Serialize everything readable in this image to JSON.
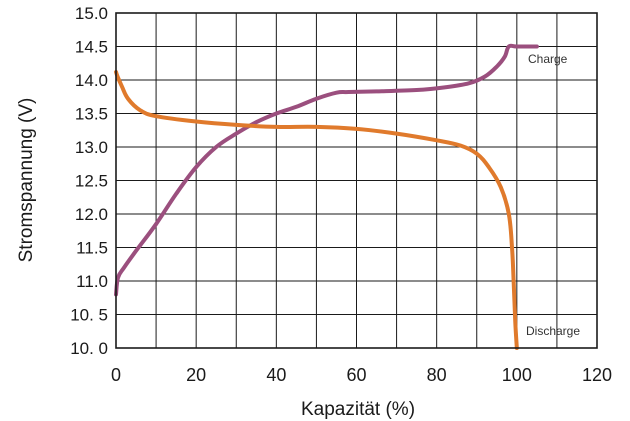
{
  "chart_data": {
    "type": "line",
    "title": "",
    "xlabel": "Kapazität (%)",
    "ylabel": "Stromspannung (V)",
    "xlim": [
      0,
      120
    ],
    "ylim": [
      10.0,
      15.0
    ],
    "grid": true,
    "x_ticks": [
      "0",
      "20",
      "40",
      "60",
      "80",
      "100",
      "120"
    ],
    "y_ticks": [
      "10. 0",
      "10. 5",
      "11.0",
      "11.5",
      "12.0",
      "12.5",
      "13.0",
      "13.5",
      "14.0",
      "14.5",
      "15.0"
    ],
    "series": [
      {
        "name": "Charge",
        "color": "#9b4f7e",
        "x": [
          0,
          0.5,
          2,
          5,
          10,
          15,
          20,
          25,
          30,
          35,
          40,
          45,
          50,
          55,
          58,
          65,
          75,
          82,
          88,
          92,
          95,
          97,
          98,
          100,
          105
        ],
        "y": [
          10.8,
          11.05,
          11.2,
          11.45,
          11.85,
          12.3,
          12.7,
          13.0,
          13.2,
          13.37,
          13.5,
          13.6,
          13.72,
          13.81,
          13.82,
          13.83,
          13.85,
          13.89,
          13.95,
          14.05,
          14.2,
          14.35,
          14.5,
          14.5,
          14.5
        ]
      },
      {
        "name": "Discharge",
        "color": "#e07a2c",
        "x": [
          0,
          0.4,
          1.5,
          3,
          6,
          10,
          20,
          30,
          40,
          50,
          60,
          70,
          80,
          86,
          90,
          93,
          96,
          98,
          98.8,
          99.2,
          99.6,
          100
        ],
        "y": [
          14.12,
          14.05,
          13.9,
          13.72,
          13.55,
          13.46,
          13.38,
          13.33,
          13.3,
          13.3,
          13.27,
          13.2,
          13.1,
          13.02,
          12.9,
          12.7,
          12.4,
          12.0,
          11.5,
          11.0,
          10.4,
          10.0
        ]
      }
    ],
    "annotations": [
      "Charge",
      "Discharge"
    ]
  }
}
